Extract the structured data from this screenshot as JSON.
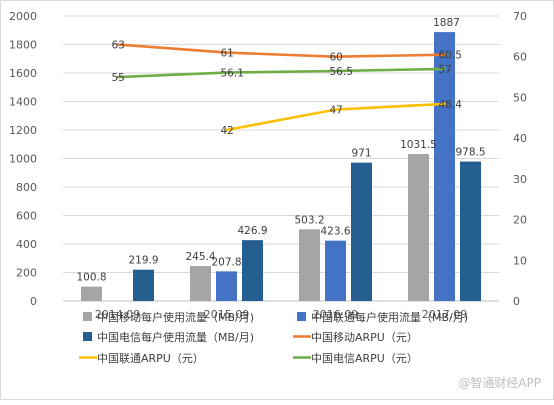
{
  "chart_data": {
    "type": "bar",
    "categories": [
      "2014.09",
      "2015.09",
      "2016.09",
      "2017.09"
    ],
    "y_left": {
      "min": 0,
      "max": 2000,
      "step": 200
    },
    "y_right": {
      "min": 0,
      "max": 70,
      "step": 10
    },
    "grid": true,
    "legend_position": "bottom",
    "bar_series": [
      {
        "name": "中国移动每户使用流量（MB/月)",
        "color": "#a5a5a5",
        "values": [
          100.8,
          245.4,
          503.2,
          1031.5
        ],
        "labels": [
          "100.8",
          "245.4",
          "503.2",
          "1031.5"
        ]
      },
      {
        "name": "中国联通每户使用流量（MB/月)",
        "color": "#4472c4",
        "values": [
          null,
          207.8,
          423.6,
          1887
        ],
        "labels": [
          "",
          "207.8",
          "423.6",
          "1887"
        ]
      },
      {
        "name": "中国电信每户使用流量（MB/月)",
        "color": "#255e91",
        "values": [
          219.9,
          426.9,
          971,
          978.5
        ],
        "labels": [
          "219.9",
          "426.9",
          "971",
          "978.5"
        ]
      }
    ],
    "line_series": [
      {
        "name": "中国移动ARPU（元）",
        "color": "#ed7d31",
        "values": [
          63,
          61,
          60,
          60.5
        ],
        "labels": [
          "63",
          "61",
          "60",
          "60.5"
        ]
      },
      {
        "name": "中国联通ARPU（元）",
        "color": "#ffc000",
        "values": [
          null,
          42,
          47,
          48.4
        ],
        "labels": [
          "",
          "42",
          "47",
          "48.4"
        ]
      },
      {
        "name": "中国电信ARPU（元）",
        "color": "#70ad47",
        "values": [
          55,
          56.1,
          56.5,
          57
        ],
        "labels": [
          "55",
          "56.1",
          "56.5",
          "57"
        ]
      }
    ]
  },
  "legend": [
    {
      "key": "bar",
      "series": 0
    },
    {
      "key": "bar",
      "series": 1
    },
    {
      "key": "bar",
      "series": 2
    },
    {
      "key": "line",
      "series": 0
    },
    {
      "key": "line",
      "series": 1
    },
    {
      "key": "line",
      "series": 2
    }
  ],
  "watermark": "@智通财经APP"
}
